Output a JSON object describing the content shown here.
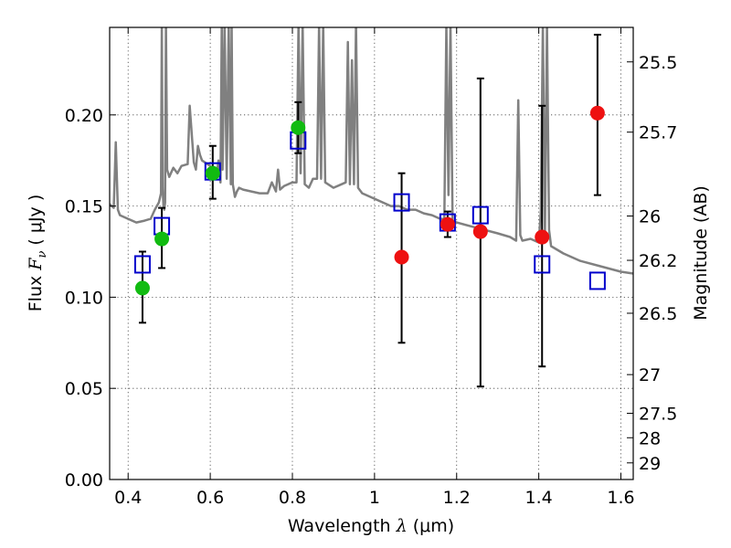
{
  "chart_data": {
    "type": "scatter",
    "xlabel_text": "Wavelength ",
    "xlabel_symbol": "λ",
    "xlabel_unit": " (μm)",
    "ylabel_text": "Flux ",
    "ylabel_symbol": "F",
    "ylabel_sub": "ν",
    "ylabel_unit": " ( μJy )",
    "y2label": "Magnitude (AB)",
    "xlim": [
      0.355,
      1.63
    ],
    "ylim": [
      0.0,
      0.248
    ],
    "grid": true,
    "x_ticks": [
      {
        "value": 0.4,
        "label": "0.4"
      },
      {
        "value": 0.6,
        "label": "0.6"
      },
      {
        "value": 0.8,
        "label": "0.8"
      },
      {
        "value": 1.0,
        "label": "1"
      },
      {
        "value": 1.2,
        "label": "1.2"
      },
      {
        "value": 1.4,
        "label": "1.4"
      },
      {
        "value": 1.6,
        "label": "1.6"
      }
    ],
    "y_ticks": [
      {
        "value": 0.0,
        "label": "0.00"
      },
      {
        "value": 0.05,
        "label": "0.05"
      },
      {
        "value": 0.1,
        "label": "0.10"
      },
      {
        "value": 0.15,
        "label": "0.15"
      },
      {
        "value": 0.2,
        "label": "0.20"
      }
    ],
    "mag_ticks": [
      {
        "value": 25.5,
        "label": "25.5"
      },
      {
        "value": 25.7,
        "label": "25.7"
      },
      {
        "value": 26.0,
        "label": "26"
      },
      {
        "value": 26.2,
        "label": "26.2"
      },
      {
        "value": 26.5,
        "label": "26.5"
      },
      {
        "value": 27.0,
        "label": "27"
      },
      {
        "value": 27.5,
        "label": "27.5"
      },
      {
        "value": 28.0,
        "label": "28"
      },
      {
        "value": 29.0,
        "label": "29"
      }
    ],
    "series": [
      {
        "kind": "line",
        "color": "#808080",
        "x": [
          0.355,
          0.36,
          0.365,
          0.37,
          0.375,
          0.38,
          0.4,
          0.42,
          0.44,
          0.455,
          0.465,
          0.475,
          0.48,
          0.482,
          0.484,
          0.486,
          0.488,
          0.49,
          0.492,
          0.495,
          0.5,
          0.51,
          0.52,
          0.53,
          0.545,
          0.55,
          0.56,
          0.565,
          0.57,
          0.575,
          0.58,
          0.6,
          0.615,
          0.62,
          0.625,
          0.628,
          0.63,
          0.635,
          0.64,
          0.645,
          0.65,
          0.652,
          0.655,
          0.66,
          0.665,
          0.67,
          0.68,
          0.7,
          0.72,
          0.74,
          0.75,
          0.76,
          0.765,
          0.77,
          0.78,
          0.8,
          0.81,
          0.815,
          0.82,
          0.825,
          0.83,
          0.84,
          0.85,
          0.86,
          0.865,
          0.87,
          0.875,
          0.88,
          0.9,
          0.92,
          0.93,
          0.935,
          0.94,
          0.945,
          0.95,
          0.955,
          0.96,
          0.97,
          1.0,
          1.04,
          1.06,
          1.08,
          1.1,
          1.12,
          1.14,
          1.16,
          1.17,
          1.175,
          1.18,
          1.185,
          1.19,
          1.2,
          1.25,
          1.3,
          1.33,
          1.345,
          1.35,
          1.355,
          1.36,
          1.38,
          1.4,
          1.405,
          1.41,
          1.415,
          1.42,
          1.425,
          1.43,
          1.46,
          1.5,
          1.55,
          1.6,
          1.63
        ],
        "y": [
          0.151,
          0.15,
          0.149,
          0.185,
          0.148,
          0.145,
          0.143,
          0.141,
          0.142,
          0.143,
          0.148,
          0.152,
          0.157,
          0.25,
          0.16,
          0.15,
          0.148,
          0.152,
          0.25,
          0.17,
          0.166,
          0.171,
          0.168,
          0.172,
          0.173,
          0.205,
          0.174,
          0.17,
          0.183,
          0.178,
          0.175,
          0.172,
          0.166,
          0.175,
          0.163,
          0.25,
          0.17,
          0.25,
          0.165,
          0.25,
          0.162,
          0.25,
          0.162,
          0.155,
          0.158,
          0.16,
          0.159,
          0.158,
          0.157,
          0.157,
          0.163,
          0.158,
          0.17,
          0.159,
          0.161,
          0.163,
          0.163,
          0.25,
          0.168,
          0.25,
          0.162,
          0.16,
          0.165,
          0.165,
          0.25,
          0.165,
          0.25,
          0.163,
          0.16,
          0.162,
          0.163,
          0.24,
          0.162,
          0.23,
          0.162,
          0.25,
          0.16,
          0.157,
          0.154,
          0.15,
          0.15,
          0.148,
          0.148,
          0.146,
          0.145,
          0.143,
          0.143,
          0.25,
          0.156,
          0.25,
          0.142,
          0.141,
          0.138,
          0.135,
          0.133,
          0.131,
          0.208,
          0.134,
          0.131,
          0.132,
          0.13,
          0.147,
          0.25,
          0.132,
          0.25,
          0.137,
          0.128,
          0.124,
          0.12,
          0.117,
          0.114,
          0.113
        ]
      },
      {
        "kind": "errorbars",
        "color": "#000000",
        "points": [
          {
            "x": 0.435,
            "lo": 0.086,
            "hi": 0.125
          },
          {
            "x": 0.482,
            "lo": 0.116,
            "hi": 0.149
          },
          {
            "x": 0.606,
            "lo": 0.154,
            "hi": 0.183
          },
          {
            "x": 0.814,
            "lo": 0.179,
            "hi": 0.207
          },
          {
            "x": 1.066,
            "lo": 0.075,
            "hi": 0.168
          },
          {
            "x": 1.178,
            "lo": 0.133,
            "hi": 0.147
          },
          {
            "x": 1.258,
            "lo": 0.051,
            "hi": 0.22
          },
          {
            "x": 1.408,
            "lo": 0.062,
            "hi": 0.205
          },
          {
            "x": 1.543,
            "lo": 0.156,
            "hi": 0.244
          }
        ]
      },
      {
        "kind": "squares",
        "color": "#0000cc",
        "x": [
          0.435,
          0.482,
          0.606,
          0.814,
          1.066,
          1.178,
          1.258,
          1.408,
          1.543
        ],
        "y": [
          0.118,
          0.139,
          0.169,
          0.186,
          0.152,
          0.141,
          0.145,
          0.118,
          0.109
        ]
      },
      {
        "kind": "circles",
        "color": "#11bb11",
        "x": [
          0.435,
          0.482,
          0.606,
          0.814
        ],
        "y": [
          0.105,
          0.132,
          0.168,
          0.193
        ]
      },
      {
        "kind": "circles",
        "color": "#ee1111",
        "x": [
          1.066,
          1.178,
          1.258,
          1.408,
          1.543
        ],
        "y": [
          0.122,
          0.14,
          0.136,
          0.133,
          0.201
        ]
      }
    ]
  }
}
